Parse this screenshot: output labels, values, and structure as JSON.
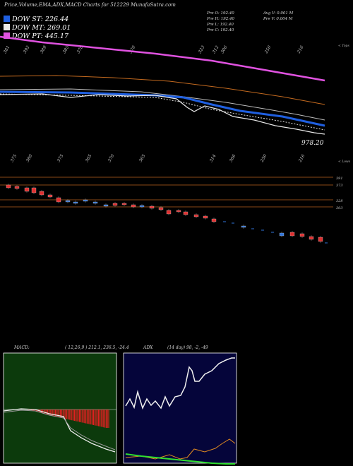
{
  "header": {
    "title": "Price,Volume,EMA,ADX,MACD Charts for 512229 MunafaSutra.com"
  },
  "legend": [
    {
      "label": "DOW ST: 226.44",
      "color": "#1f5fe0"
    },
    {
      "label": "DOW MT: 269.01",
      "color": "#e8e8e8"
    },
    {
      "label": "DOW PT: 445.17",
      "color": "#e052e0"
    }
  ],
  "ohlc": {
    "open": "Pre   O: 192.40",
    "high": "Pre   H: 192.40",
    "low": "Pre   L: 192.40",
    "close": "Pre   C: 192.40",
    "avg_volume": "Avg V: 0.001  M",
    "prev_volume": "Pre   V: 0.004  M"
  },
  "upper_panel": {
    "top_label": "< Tops",
    "top_ticks": [
      "381",
      "392",
      "389",
      "385",
      "378",
      "370",
      "323",
      "312",
      "306",
      "250",
      "216"
    ],
    "price_label": "978.20",
    "lower_label": "< Lows",
    "bottom_ticks": [
      "375",
      "380",
      "375",
      "365",
      "370",
      "365",
      "314",
      "306",
      "250",
      "216"
    ]
  },
  "price_panel": {
    "levels": [
      "391",
      "373",
      "328",
      "303"
    ]
  },
  "macd": {
    "title": "MACD:",
    "values": "( 12,26,9 ) 212.1,  236.5,  -24.4"
  },
  "adx": {
    "title": "ADX",
    "values": "(14  day) 98,  -2,  -49"
  },
  "colors": {
    "ema_short": "#1f5fe0",
    "ema_mid": "#e8e8e8",
    "ema_long": "#e052e0",
    "ema_orange": "#c46a1f",
    "candle_up": "#2f72d6",
    "candle_down": "#e03030",
    "macd_bg": "#0c3a0c",
    "adx_bg": "#05053a",
    "hist": "#e02020",
    "level_line": "#b8601e",
    "adx_main": "#f0f0f0",
    "adx_plus": "#30e030",
    "adx_minus": "#e08a20"
  },
  "chart_data": {
    "type": "line",
    "title": "Price,Volume,EMA,ADX,MACD Charts for 512229 MunafaSutra.com",
    "series": [
      {
        "name": "DOW ST",
        "values": [
          226.44
        ]
      },
      {
        "name": "DOW MT",
        "values": [
          269.01
        ]
      },
      {
        "name": "DOW PT",
        "values": [
          445.17
        ]
      }
    ]
  }
}
